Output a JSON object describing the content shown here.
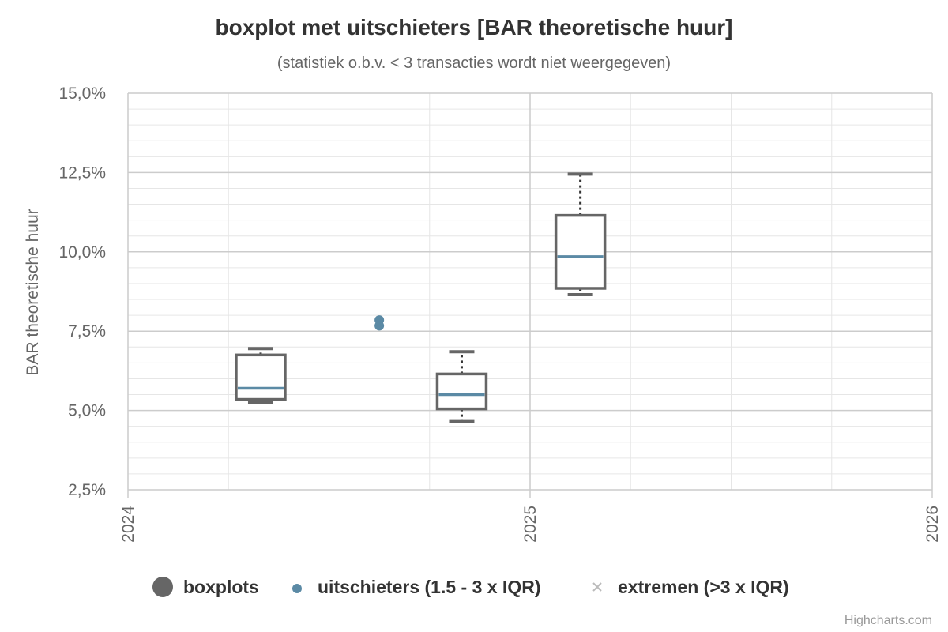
{
  "chart_data": {
    "type": "boxplot",
    "title": "boxplot met uitschieters [BAR theoretische huur]",
    "subtitle": "(statistiek o.b.v. < 3 transacties wordt niet weergegeven)",
    "ylabel": "BAR theoretische huur",
    "ylim": [
      2.5,
      15.0
    ],
    "yticks": [
      2.5,
      5.0,
      7.5,
      10.0,
      12.5,
      15.0
    ],
    "ytick_labels": [
      "2,5%",
      "5,0%",
      "7,5%",
      "10,0%",
      "12,5%",
      "15,0%"
    ],
    "xlim": [
      2024.0,
      2026.0
    ],
    "xticks": [
      2024.0,
      2025.0,
      2026.0
    ],
    "xtick_labels": [
      "2024",
      "2025",
      "2026"
    ],
    "grid": true,
    "boxes": [
      {
        "x": 2024.33,
        "low": 5.25,
        "q1": 5.35,
        "median": 5.7,
        "q3": 6.75,
        "high": 6.95
      },
      {
        "x": 2024.83,
        "low": 4.65,
        "q1": 5.05,
        "median": 5.5,
        "q3": 6.15,
        "high": 6.85
      },
      {
        "x": 2025.125,
        "low": 8.65,
        "q1": 8.85,
        "median": 9.85,
        "q3": 11.15,
        "high": 12.45
      }
    ],
    "outliers": [
      {
        "x": 2024.625,
        "y": 7.85
      },
      {
        "x": 2024.625,
        "y": 7.67
      }
    ],
    "extremes": [],
    "legend": {
      "position": "bottom",
      "items": [
        {
          "label": "boxplots",
          "symbol": "circle-large",
          "color": "#666666"
        },
        {
          "label": "uitschieters (1.5 - 3 x IQR)",
          "symbol": "circle-small",
          "color": "#5b8aa5"
        },
        {
          "label": "extremen (>3 x IQR)",
          "symbol": "cross",
          "color": "#bbbbbb"
        }
      ]
    },
    "colors": {
      "box": "#666666",
      "median": "#5b8aa5",
      "outlier": "#5b8aa5",
      "grid_major": "#cccccc",
      "grid_minor": "#e6e6e6"
    }
  },
  "credits": "Highcharts.com"
}
